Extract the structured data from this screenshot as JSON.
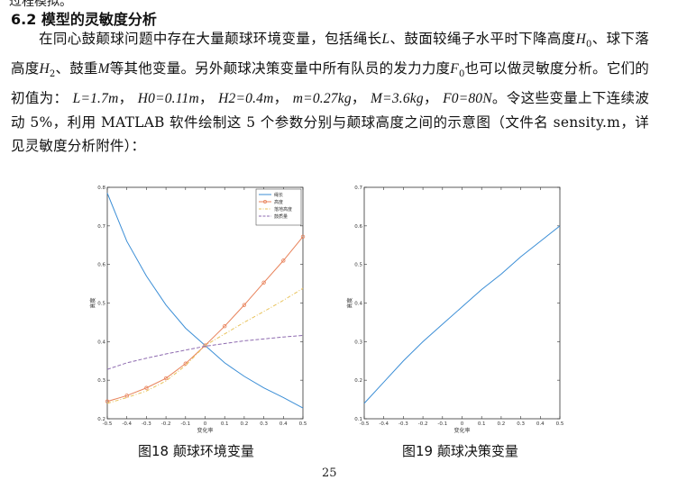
{
  "cut_top_text": "过程模拟。",
  "section": {
    "number": "6.2",
    "title": "模型的灵敏度分析"
  },
  "paragraph": {
    "seg1": "在同心鼓颠球问题中存在大量颠球环境变量，包括绳长",
    "L": "L",
    "seg2": "、鼓面较绳子水平时下降高度",
    "H0": "H",
    "H0_sub": "0",
    "seg3": "、球下落高度",
    "H2": "H",
    "H2_sub": "2",
    "seg4": "、鼓重",
    "M": "M",
    "seg5": "等其他变量。另外颠球决策变量中所有队员的发力力度",
    "F0": "F",
    "F0_sub": "0",
    "seg6": "也可以做灵敏度分析。它们的初值为：",
    "val_L": "L=1.7m",
    "val_H0": "H0=0.11m",
    "val_H2": "H2=0.4m",
    "val_m": "m=0.27kg",
    "val_M": "M=3.6kg",
    "val_F0": "F0=80N",
    "seg7": "令这些变量上下连续波动 5%，利用 MATLAB 软件绘制这 5 个参数分别与颠球高度之间的示意图（文件名 sensity.m，详见灵敏度分析附件）："
  },
  "chart_data": [
    {
      "type": "line",
      "x": [
        -0.5,
        -0.4,
        -0.3,
        -0.2,
        -0.1,
        0,
        0.1,
        0.2,
        0.3,
        0.4,
        0.5
      ],
      "xlabel": "变化率",
      "ylabel": "高度",
      "xlim": [
        -0.5,
        0.5
      ],
      "ylim": [
        0.2,
        0.8
      ],
      "xticks": [
        "-0.5",
        "-0.4",
        "-0.3",
        "-0.2",
        "-0.1",
        "0",
        "0.1",
        "0.2",
        "0.3",
        "0.4",
        "0.5"
      ],
      "yticks": [
        "0.2",
        "0.3",
        "0.4",
        "0.5",
        "0.6",
        "0.7",
        "0.8"
      ],
      "legend_position": "top-right",
      "series": [
        {
          "name": "绳长",
          "color": "#3b8ed6",
          "style": "solid",
          "marker": "none",
          "values": [
            0.785,
            0.66,
            0.57,
            0.495,
            0.435,
            0.39,
            0.345,
            0.31,
            0.28,
            0.255,
            0.228
          ]
        },
        {
          "name": "高度",
          "color": "#e8825a",
          "style": "solid",
          "marker": "circle",
          "values": [
            0.245,
            0.26,
            0.28,
            0.305,
            0.343,
            0.39,
            0.44,
            0.495,
            0.553,
            0.61,
            0.672
          ]
        },
        {
          "name": "落地高度",
          "color": "#e8c25a",
          "style": "dashdot",
          "marker": "none",
          "values": [
            0.24,
            0.255,
            0.272,
            0.298,
            0.338,
            0.39,
            0.42,
            0.45,
            0.478,
            0.507,
            0.538
          ]
        },
        {
          "name": "鼓质量",
          "color": "#8e6bb0",
          "style": "dashed",
          "marker": "none",
          "values": [
            0.328,
            0.345,
            0.357,
            0.368,
            0.378,
            0.388,
            0.395,
            0.402,
            0.407,
            0.412,
            0.416
          ]
        }
      ]
    },
    {
      "type": "line",
      "x": [
        -0.5,
        -0.4,
        -0.3,
        -0.2,
        -0.1,
        0,
        0.1,
        0.2,
        0.3,
        0.4,
        0.5
      ],
      "xlabel": "变化率",
      "ylabel": "高度",
      "xlim": [
        -0.5,
        0.5
      ],
      "ylim": [
        0.1,
        0.7
      ],
      "xticks": [
        "-0.5",
        "-0.4",
        "-0.3",
        "-0.2",
        "-0.1",
        "0",
        "0.1",
        "0.2",
        "0.3",
        "0.4",
        "0.5"
      ],
      "yticks": [
        "0.1",
        "0.2",
        "0.3",
        "0.4",
        "0.5",
        "0.6",
        "0.7"
      ],
      "series": [
        {
          "color": "#3b8ed6",
          "style": "solid",
          "marker": "none",
          "values": [
            0.14,
            0.195,
            0.25,
            0.3,
            0.345,
            0.39,
            0.435,
            0.475,
            0.52,
            0.56,
            0.6
          ]
        }
      ]
    }
  ],
  "captions": {
    "fig18": "图18  颠球环境变量",
    "fig19": "图19  颠球决策变量"
  },
  "page_number": "25"
}
